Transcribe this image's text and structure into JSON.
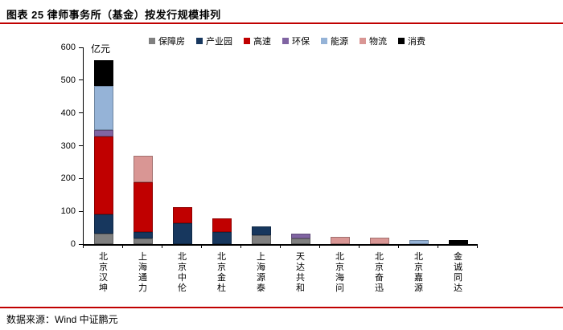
{
  "title": "图表 25  律师事务所（基金）按发行规模排列",
  "footer": {
    "source_label": "数据来源：Wind   中证鹏元"
  },
  "accent_color": "#C00000",
  "chart_data": {
    "type": "bar",
    "stacked": true,
    "title": "律师事务所（基金）按发行规模排列",
    "unit_label": "亿元",
    "xlabel": "",
    "ylabel": "亿元",
    "ylim": [
      0,
      600
    ],
    "yticks": [
      600,
      500,
      400,
      300,
      200,
      100,
      0
    ],
    "grid": false,
    "legend_position": "top",
    "label_orientation": "vertical",
    "categories": [
      "北京汉坤",
      "上海通力",
      "北京中伦",
      "北京金杜",
      "上海源泰",
      "天达共和",
      "北京海问",
      "北京奋迅",
      "北京嘉源",
      "金诚同达"
    ],
    "series": [
      {
        "name": "保障房",
        "color": "#808080",
        "values": [
          33,
          17,
          0,
          0,
          26,
          16,
          0,
          0,
          0,
          0
        ]
      },
      {
        "name": "产业园",
        "color": "#17375E",
        "values": [
          57,
          19,
          63,
          37,
          29,
          0,
          0,
          0,
          0,
          0
        ]
      },
      {
        "name": "高速",
        "color": "#C00000",
        "values": [
          239,
          153,
          49,
          42,
          0,
          0,
          0,
          0,
          0,
          0
        ]
      },
      {
        "name": "环保",
        "color": "#8064A2",
        "values": [
          18,
          0,
          0,
          0,
          0,
          17,
          0,
          0,
          0,
          0
        ]
      },
      {
        "name": "能源",
        "color": "#95B3D7",
        "values": [
          136,
          0,
          0,
          0,
          0,
          0,
          0,
          0,
          13,
          0
        ]
      },
      {
        "name": "物流",
        "color": "#D99694",
        "values": [
          0,
          80,
          0,
          0,
          0,
          0,
          23,
          19,
          0,
          0
        ]
      },
      {
        "name": "消费",
        "color": "#000000",
        "values": [
          77,
          0,
          0,
          0,
          0,
          0,
          0,
          0,
          0,
          12
        ]
      }
    ],
    "totals": [
      560,
      269,
      112,
      79,
      55,
      33,
      23,
      19,
      13,
      12
    ]
  }
}
